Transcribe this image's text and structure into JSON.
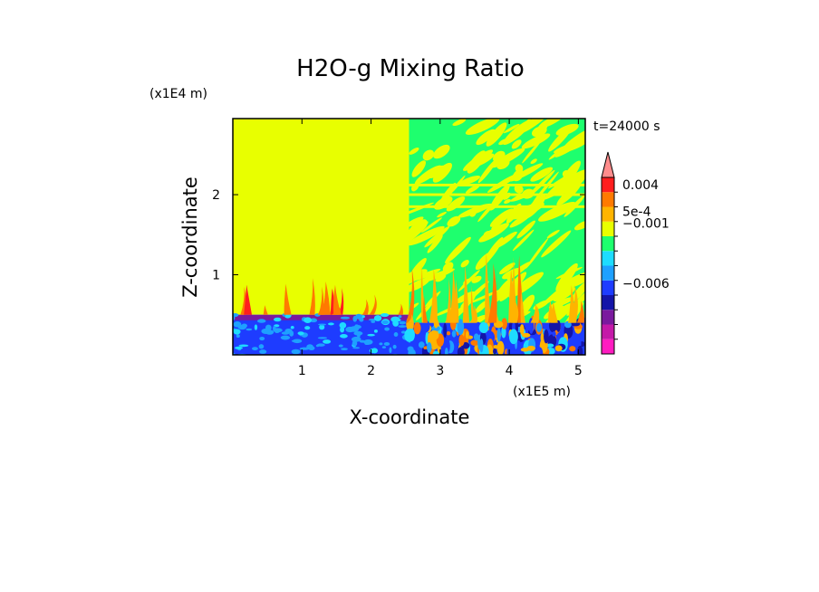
{
  "chart_data": {
    "type": "heatmap",
    "title": "H2O-g Mixing Ratio",
    "xlabel": "X-coordinate",
    "ylabel": "Z-coordinate",
    "x_unit_label": "(x1E5 m)",
    "y_unit_label": "(x1E4 m)",
    "time_label": "t=24000 s",
    "xlim": [
      0,
      5.1
    ],
    "ylim": [
      0,
      2.95
    ],
    "x_ticks": [
      {
        "value": 1,
        "label": "1"
      },
      {
        "value": 2,
        "label": "2"
      },
      {
        "value": 3,
        "label": "3"
      },
      {
        "value": 4,
        "label": "4"
      },
      {
        "value": 5,
        "label": "5"
      }
    ],
    "y_ticks": [
      {
        "value": 1,
        "label": "1"
      },
      {
        "value": 2,
        "label": "2"
      }
    ],
    "colorbar": {
      "levels": [
        {
          "color": "#ff1cc0"
        },
        {
          "color": "#c41aa8"
        },
        {
          "color": "#7a1a9e"
        },
        {
          "color": "#1414a8"
        },
        {
          "color": "#1e3cff"
        },
        {
          "color": "#1ea0ff"
        },
        {
          "color": "#1edcff"
        },
        {
          "color": "#1eff6e"
        },
        {
          "color": "#e8ff00"
        },
        {
          "color": "#ffb400"
        },
        {
          "color": "#ff7a00"
        },
        {
          "color": "#ff1e1e"
        },
        {
          "color": "#ff8c8c"
        }
      ],
      "labels": [
        {
          "text": "0.004",
          "level": 11.5
        },
        {
          "text": "5e-4",
          "level": 9.7
        },
        {
          "text": "−0.001",
          "level": 8.9
        },
        {
          "text": "−0.006",
          "level": 4.8
        }
      ]
    },
    "regions": [
      {
        "name": "dry-uniform-left",
        "x": [
          0,
          2.55
        ],
        "z": [
          0.5,
          2.95
        ],
        "level": 8
      },
      {
        "name": "surface-layer-left",
        "x": [
          0,
          2.55
        ],
        "z": [
          0,
          0.5
        ],
        "level": 4
      },
      {
        "name": "right-upper-mixed",
        "x": [
          2.55,
          5.1
        ],
        "z": [
          0.4,
          2.95
        ],
        "levels": [
          7,
          8
        ]
      },
      {
        "name": "right-lower-convective",
        "x": [
          2.55,
          5.1
        ],
        "z": [
          0,
          0.4
        ],
        "levels": [
          3,
          4,
          5,
          6,
          9,
          10
        ]
      }
    ]
  }
}
